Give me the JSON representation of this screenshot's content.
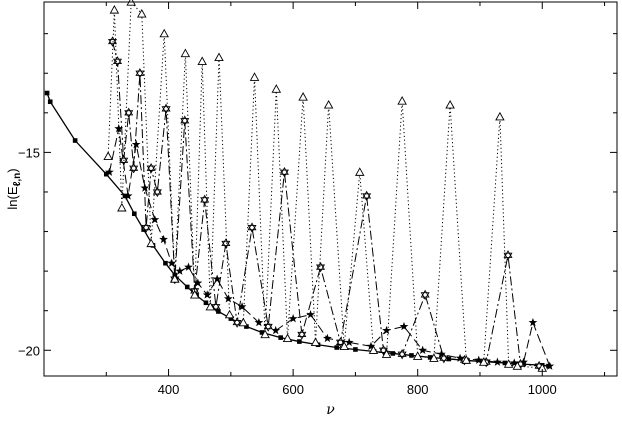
{
  "chart_data": {
    "type": "line",
    "title": "",
    "xlabel": "ν",
    "ylabel": "ln(E",
    "ylabel_sub": "ℓ,n",
    "ylabel_close": ")",
    "xlim": [
      200,
      1120
    ],
    "ylim": [
      -20.65,
      -11.2
    ],
    "x_ticks": [
      400,
      600,
      800,
      1000
    ],
    "x_tick_labels": [
      "400",
      "600",
      "800",
      "1000"
    ],
    "y_ticks": [
      -15,
      -20
    ],
    "y_tick_labels": [
      "−15",
      "−20"
    ],
    "grid": false,
    "legend": "none",
    "series": [
      {
        "style": "solid",
        "marker": "square",
        "color": "#000000",
        "x": [
          205,
          210,
          250,
          300,
          330,
          345,
          360,
          375,
          395,
          410,
          430,
          445,
          460,
          480,
          500,
          525,
          550,
          580,
          610,
          640,
          670,
          700,
          730,
          760,
          790,
          820,
          850,
          880,
          910,
          940,
          970,
          1000,
          1010
        ],
        "y": [
          -13.5,
          -13.72,
          -14.7,
          -15.55,
          -16.1,
          -16.55,
          -16.95,
          -17.35,
          -17.8,
          -18.1,
          -18.4,
          -18.62,
          -18.8,
          -19.02,
          -19.2,
          -19.4,
          -19.55,
          -19.68,
          -19.78,
          -19.86,
          -19.93,
          -19.98,
          -20.03,
          -20.08,
          -20.13,
          -20.18,
          -20.22,
          -20.26,
          -20.29,
          -20.32,
          -20.35,
          -20.38,
          -20.4
        ]
      },
      {
        "style": "dashed",
        "marker": "filled-star",
        "color": "#000000",
        "x": [
          305,
          320,
          335,
          348,
          362,
          378,
          392,
          405,
          418,
          432,
          447,
          462,
          478,
          496,
          518,
          545,
          572,
          600,
          628,
          655,
          690,
          725,
          750,
          778,
          808,
          838,
          868,
          898,
          928,
          955,
          970,
          985,
          1012
        ],
        "y": [
          -15.5,
          -14.4,
          -16.1,
          -14.8,
          -15.9,
          -16.7,
          -17.2,
          -17.8,
          -18.0,
          -17.9,
          -18.3,
          -18.6,
          -18.2,
          -18.7,
          -18.9,
          -19.3,
          -19.5,
          -19.2,
          -19.1,
          -19.7,
          -19.8,
          -19.9,
          -19.5,
          -19.4,
          -20.0,
          -20.1,
          -20.2,
          -20.25,
          -20.3,
          -20.32,
          -20.3,
          -19.3,
          -20.4
        ]
      },
      {
        "style": "dash-dot",
        "marker": "open-star",
        "color": "#000000",
        "x": [
          310,
          318,
          328,
          336,
          344,
          354,
          364,
          372,
          382,
          396,
          410,
          426,
          442,
          458,
          476,
          492,
          510,
          534,
          560,
          586,
          614,
          644,
          676,
          718,
          745,
          775,
          812,
          842,
          875,
          910,
          945,
          965,
          995
        ],
        "y": [
          -12.2,
          -12.7,
          -15.2,
          -14.0,
          -15.4,
          -13.0,
          -16.9,
          -15.4,
          -16.0,
          -13.9,
          -18.2,
          -14.2,
          -18.5,
          -16.2,
          -18.9,
          -17.3,
          -19.3,
          -16.9,
          -19.4,
          -15.5,
          -19.6,
          -17.9,
          -19.8,
          -16.1,
          -20.0,
          -20.1,
          -18.6,
          -20.2,
          -20.25,
          -20.3,
          -17.6,
          -20.35,
          -20.4
        ]
      },
      {
        "style": "dotted",
        "marker": "open-triangle",
        "color": "#000000",
        "x": [
          303,
          313,
          325,
          340,
          357,
          372,
          393,
          410,
          427,
          442,
          454,
          467,
          481,
          498,
          520,
          538,
          555,
          573,
          591,
          616,
          636,
          657,
          682,
          707,
          729,
          750,
          775,
          800,
          826,
          852,
          878,
          906,
          932,
          946,
          960,
          1000
        ],
        "y": [
          -15.1,
          -11.4,
          -16.4,
          -11.2,
          -11.5,
          -17.3,
          -12.0,
          -18.2,
          -12.5,
          -18.6,
          -12.7,
          -18.9,
          -12.6,
          -19.1,
          -19.3,
          -13.1,
          -19.6,
          -13.4,
          -19.7,
          -13.6,
          -19.8,
          -13.8,
          -19.9,
          -15.5,
          -20.0,
          -20.1,
          -13.7,
          -20.15,
          -20.2,
          -13.8,
          -20.25,
          -20.3,
          -14.1,
          -20.35,
          -20.4,
          -20.45
        ]
      }
    ]
  }
}
